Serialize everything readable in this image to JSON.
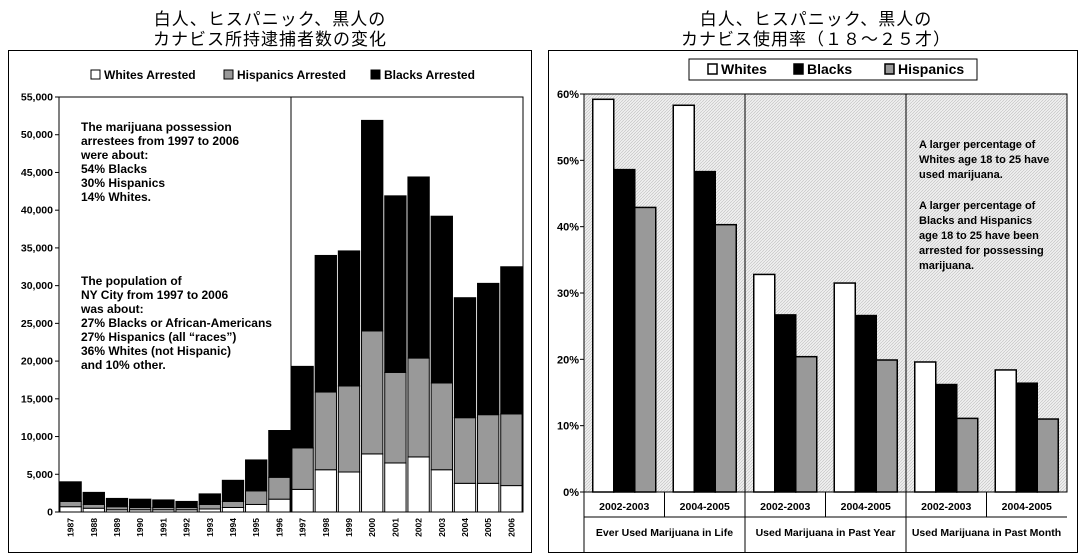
{
  "left_title": [
    "白人、ヒスパニック、黒人の",
    "カナビス所持逮捕者数の変化"
  ],
  "right_title": [
    "白人、ヒスパニック、黒人の",
    "カナビス使用率（１８〜２５才）"
  ],
  "chart_data": [
    {
      "type": "bar",
      "stacked": true,
      "categories": [
        "1987",
        "1988",
        "1989",
        "1990",
        "1991",
        "1992",
        "1993",
        "1994",
        "1995",
        "1996",
        "1997",
        "1998",
        "1999",
        "2000",
        "2001",
        "2002",
        "2003",
        "2004",
        "2005",
        "2006"
      ],
      "series": [
        {
          "name": "Whites  Arrested",
          "color": "#ffffff",
          "values": [
            700,
            500,
            300,
            300,
            300,
            300,
            400,
            600,
            1000,
            1700,
            3000,
            5600,
            5300,
            7700,
            6500,
            7300,
            5600,
            3800,
            3800,
            3500
          ]
        },
        {
          "name": "Hispanics Arrested",
          "color": "#999999",
          "values": [
            700,
            500,
            400,
            300,
            300,
            300,
            600,
            800,
            1800,
            2900,
            5500,
            10300,
            11400,
            16300,
            12000,
            13100,
            11500,
            8700,
            9100,
            9500
          ]
        },
        {
          "name": "Blacks Arrested",
          "color": "#000000",
          "values": [
            2600,
            1600,
            1100,
            1100,
            1000,
            800,
            1400,
            2800,
            4100,
            6200,
            10800,
            18100,
            17900,
            27900,
            23400,
            24000,
            22100,
            15900,
            17400,
            19500
          ]
        }
      ],
      "ylim": [
        0,
        55000
      ],
      "yticks": [
        "0",
        "5,000",
        "10,000",
        "15,000",
        "20,000",
        "25,000",
        "30,000",
        "35,000",
        "40,000",
        "45,000",
        "50,000",
        "55,000"
      ],
      "divider_after": "1996",
      "legend_position": "top",
      "annotations": [
        {
          "lines": [
            "The marijuana possession",
            "arrestees from 1997 to 2006",
            "were about:",
            "54% Blacks",
            "30% Hispanics",
            "14% Whites."
          ]
        },
        {
          "lines": [
            "The population of",
            "NY City from 1997 to 2006",
            "was about:",
            "27% Blacks or African-Americans",
            "27% Hispanics (all “races”)",
            "36% Whites (not Hispanic)",
            "and 10% other."
          ]
        }
      ]
    },
    {
      "type": "bar",
      "stacked": false,
      "groups": [
        {
          "label": "Ever Used Marijuana in Life",
          "periods": [
            "2002-2003",
            "2004-2005"
          ]
        },
        {
          "label": "Used Marijuana in Past Year",
          "periods": [
            "2002-2003",
            "2004-2005"
          ]
        },
        {
          "label": "Used Marijuana in Past Month",
          "periods": [
            "2002-2003",
            "2004-2005"
          ]
        }
      ],
      "series": [
        {
          "name": "Whites",
          "color": "#ffffff",
          "values": [
            59.2,
            58.3,
            32.8,
            31.5,
            19.6,
            18.4
          ]
        },
        {
          "name": "Blacks",
          "color": "#000000",
          "values": [
            48.6,
            48.3,
            26.7,
            26.6,
            16.2,
            16.4
          ]
        },
        {
          "name": "Hispanics",
          "color": "#999999",
          "values": [
            42.9,
            40.3,
            20.4,
            19.9,
            11.1,
            11.0
          ]
        }
      ],
      "ylim": [
        0,
        60
      ],
      "yticks": [
        "0%",
        "10%",
        "20%",
        "30%",
        "40%",
        "50%",
        "60%"
      ],
      "legend_position": "top",
      "annotations": [
        {
          "lines": [
            "A larger percentage of",
            "Whites age 18 to 25 have",
            "used marijuana."
          ]
        },
        {
          "lines": [
            "A larger percentage of",
            "Blacks and Hispanics",
            "age 18 to 25 have been",
            "arrested for possessing",
            "marijuana."
          ]
        }
      ]
    }
  ]
}
